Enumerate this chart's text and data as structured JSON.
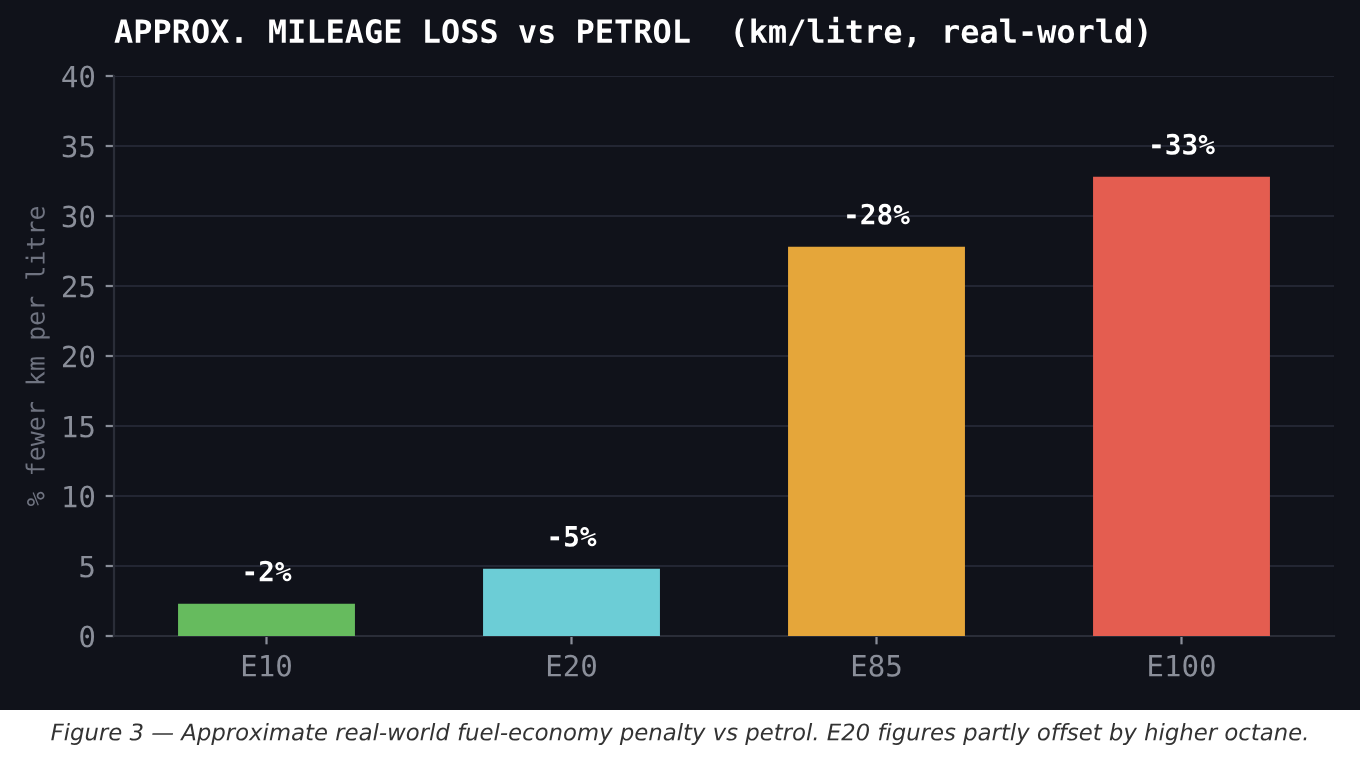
{
  "chart_data": {
    "type": "bar",
    "title": "APPROX. MILEAGE LOSS vs PETROL  (km/litre, real-world)",
    "ylabel": "% fewer km per litre",
    "categories": [
      "E10",
      "E20",
      "E85",
      "E100"
    ],
    "values": [
      2.3,
      4.8,
      27.8,
      32.8
    ],
    "colors": [
      "#66bb5e",
      "#6ccdd6",
      "#e5a63a",
      "#e45d50"
    ],
    "ylim": [
      0,
      40
    ],
    "yticks": [
      0,
      5,
      10,
      15,
      20,
      25,
      30,
      35,
      40
    ],
    "grid": "y",
    "annotations": [
      {
        "text": "-2%",
        "x": "E10",
        "y": 2.3
      },
      {
        "text": "-5%",
        "x": "E20",
        "y": 4.8
      },
      {
        "text": "-28%",
        "x": "E85",
        "y": 27.8
      },
      {
        "text": "-33%",
        "x": "E100",
        "y": 32.8
      },
      "Figure 3 — Approximate real-world fuel-economy penalty vs petrol. E20 figures partly offset by higher octane."
    ]
  }
}
